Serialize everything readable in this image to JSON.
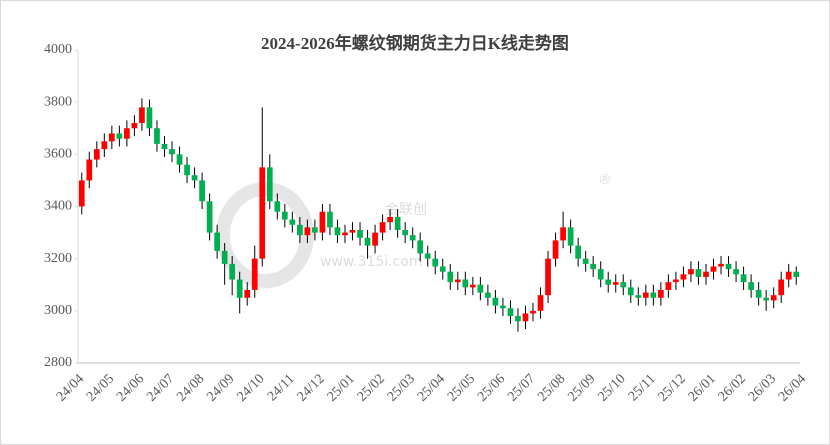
{
  "chart_data": {
    "type": "candlestick",
    "title": "2024-2026年螺纹钢期货主力日K线走势图",
    "watermark": "金联创",
    "watermark_mark": "®",
    "watermark_url": "www.315i.com",
    "categories": [
      "24/04",
      "24/05",
      "24/06",
      "24/07",
      "24/08",
      "24/09",
      "24/10",
      "24/11",
      "24/12",
      "25/01",
      "25/02",
      "25/03",
      "25/04",
      "25/05",
      "25/06",
      "25/07",
      "25/08",
      "25/09",
      "25/10",
      "25/11",
      "25/12",
      "26/01",
      "26/02",
      "26/03",
      "26/04"
    ],
    "up_color": "#ff0000",
    "down_color": "#00b050",
    "wick_color": "#000000",
    "ylim": [
      2800,
      4000
    ],
    "yticks": [
      2800,
      3000,
      3200,
      3400,
      3600,
      3800,
      4000
    ],
    "open": [
      3400,
      3500,
      3580,
      3620,
      3650,
      3680,
      3660,
      3700,
      3720,
      3780,
      3700,
      3640,
      3620,
      3600,
      3560,
      3520,
      3500,
      3420,
      3300,
      3230,
      3180,
      3120,
      3050,
      3080,
      3200,
      3550,
      3420,
      3380,
      3350,
      3330,
      3290,
      3320,
      3300,
      3380,
      3320,
      3290,
      3300,
      3310,
      3280,
      3250,
      3300,
      3340,
      3360,
      3310,
      3290,
      3270,
      3220,
      3200,
      3170,
      3150,
      3110,
      3120,
      3090,
      3100,
      3070,
      3050,
      3020,
      3010,
      2980,
      2960,
      2990,
      3000,
      3060,
      3200,
      3270,
      3320,
      3250,
      3200,
      3180,
      3160,
      3120,
      3100,
      3110,
      3090,
      3060,
      3050,
      3070,
      3050,
      3080,
      3110,
      3120,
      3140,
      3160,
      3130,
      3150,
      3170,
      3180,
      3160,
      3140,
      3110,
      3080,
      3050,
      3040,
      3060,
      3120,
      3150
    ],
    "close": [
      3500,
      3580,
      3620,
      3650,
      3680,
      3660,
      3700,
      3720,
      3780,
      3700,
      3640,
      3620,
      3600,
      3560,
      3520,
      3500,
      3420,
      3300,
      3230,
      3180,
      3120,
      3050,
      3080,
      3200,
      3550,
      3420,
      3380,
      3350,
      3330,
      3290,
      3320,
      3300,
      3380,
      3320,
      3290,
      3300,
      3310,
      3280,
      3250,
      3300,
      3340,
      3360,
      3310,
      3290,
      3270,
      3220,
      3200,
      3170,
      3150,
      3110,
      3120,
      3090,
      3100,
      3070,
      3050,
      3020,
      3010,
      2980,
      2960,
      2990,
      3000,
      3060,
      3200,
      3270,
      3320,
      3250,
      3200,
      3180,
      3160,
      3120,
      3100,
      3110,
      3090,
      3060,
      3050,
      3070,
      3050,
      3080,
      3110,
      3120,
      3140,
      3160,
      3130,
      3150,
      3170,
      3180,
      3160,
      3140,
      3110,
      3080,
      3050,
      3040,
      3060,
      3120,
      3150,
      3130
    ],
    "high": [
      3530,
      3610,
      3650,
      3680,
      3710,
      3710,
      3730,
      3750,
      3815,
      3810,
      3730,
      3670,
      3650,
      3630,
      3590,
      3550,
      3530,
      3450,
      3330,
      3260,
      3210,
      3150,
      3110,
      3250,
      3780,
      3600,
      3450,
      3410,
      3380,
      3360,
      3350,
      3350,
      3410,
      3410,
      3350,
      3330,
      3340,
      3340,
      3310,
      3330,
      3370,
      3390,
      3390,
      3340,
      3320,
      3300,
      3250,
      3230,
      3200,
      3180,
      3150,
      3150,
      3130,
      3130,
      3100,
      3080,
      3050,
      3040,
      3010,
      3020,
      3030,
      3090,
      3230,
      3300,
      3380,
      3350,
      3280,
      3230,
      3210,
      3190,
      3150,
      3140,
      3140,
      3120,
      3090,
      3100,
      3100,
      3110,
      3140,
      3150,
      3170,
      3190,
      3190,
      3180,
      3200,
      3210,
      3210,
      3190,
      3170,
      3140,
      3110,
      3080,
      3090,
      3150,
      3180,
      3170
    ],
    "low": [
      3370,
      3470,
      3550,
      3590,
      3620,
      3630,
      3630,
      3670,
      3690,
      3670,
      3610,
      3590,
      3570,
      3530,
      3490,
      3470,
      3390,
      3270,
      3200,
      3100,
      3060,
      2990,
      3020,
      3050,
      3170,
      3390,
      3350,
      3320,
      3300,
      3260,
      3260,
      3270,
      3270,
      3290,
      3260,
      3260,
      3270,
      3250,
      3200,
      3220,
      3270,
      3310,
      3280,
      3260,
      3240,
      3190,
      3170,
      3140,
      3120,
      3080,
      3080,
      3060,
      3060,
      3040,
      3020,
      2990,
      2980,
      2950,
      2920,
      2930,
      2960,
      2970,
      3030,
      3170,
      3240,
      3220,
      3170,
      3150,
      3130,
      3090,
      3070,
      3070,
      3060,
      3030,
      3020,
      3020,
      3020,
      3020,
      3050,
      3080,
      3090,
      3110,
      3100,
      3100,
      3120,
      3140,
      3130,
      3110,
      3080,
      3050,
      3020,
      3000,
      3010,
      3030,
      3090,
      3100
    ]
  }
}
